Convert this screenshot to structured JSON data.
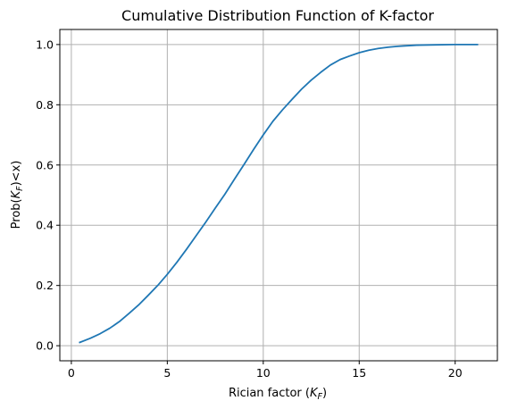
{
  "chart_data": {
    "type": "line",
    "title": "Cumulative Distribution Function of K-factor",
    "xlabel": {
      "main": "Rician factor (",
      "var": "K",
      "sub": "F",
      "end": ")"
    },
    "ylabel": {
      "main": "Prob(",
      "var": "K",
      "sub": "F",
      "end": ")<x)"
    },
    "xlim": [
      -0.6,
      22.2
    ],
    "ylim": [
      -0.05,
      1.05
    ],
    "xticks": [
      0,
      5,
      10,
      15,
      20
    ],
    "xtick_labels": [
      "0",
      "5",
      "10",
      "15",
      "20"
    ],
    "yticks": [
      0.0,
      0.2,
      0.4,
      0.6,
      0.8,
      1.0
    ],
    "ytick_labels": [
      "0.0",
      "0.2",
      "0.4",
      "0.6",
      "0.8",
      "1.0"
    ],
    "grid": true,
    "line_color": "#1f77b4",
    "series": [
      {
        "x": [
          0.4,
          1.0,
          1.5,
          2.0,
          2.5,
          3.0,
          3.5,
          4.0,
          4.5,
          5.0,
          5.5,
          6.0,
          6.5,
          7.0,
          7.5,
          8.0,
          8.5,
          9.0,
          9.5,
          10.0,
          10.5,
          11.0,
          11.5,
          12.0,
          12.5,
          13.0,
          13.5,
          14.0,
          14.5,
          15.0,
          15.5,
          16.0,
          16.5,
          17.0,
          17.5,
          18.0,
          19.0,
          20.0,
          21.2
        ],
        "y": [
          0.01,
          0.025,
          0.04,
          0.058,
          0.08,
          0.107,
          0.135,
          0.167,
          0.2,
          0.237,
          0.277,
          0.32,
          0.365,
          0.41,
          0.457,
          0.503,
          0.553,
          0.602,
          0.652,
          0.7,
          0.745,
          0.783,
          0.818,
          0.852,
          0.882,
          0.908,
          0.932,
          0.95,
          0.962,
          0.973,
          0.981,
          0.987,
          0.991,
          0.994,
          0.996,
          0.998,
          0.999,
          1.0,
          1.0
        ]
      }
    ]
  }
}
